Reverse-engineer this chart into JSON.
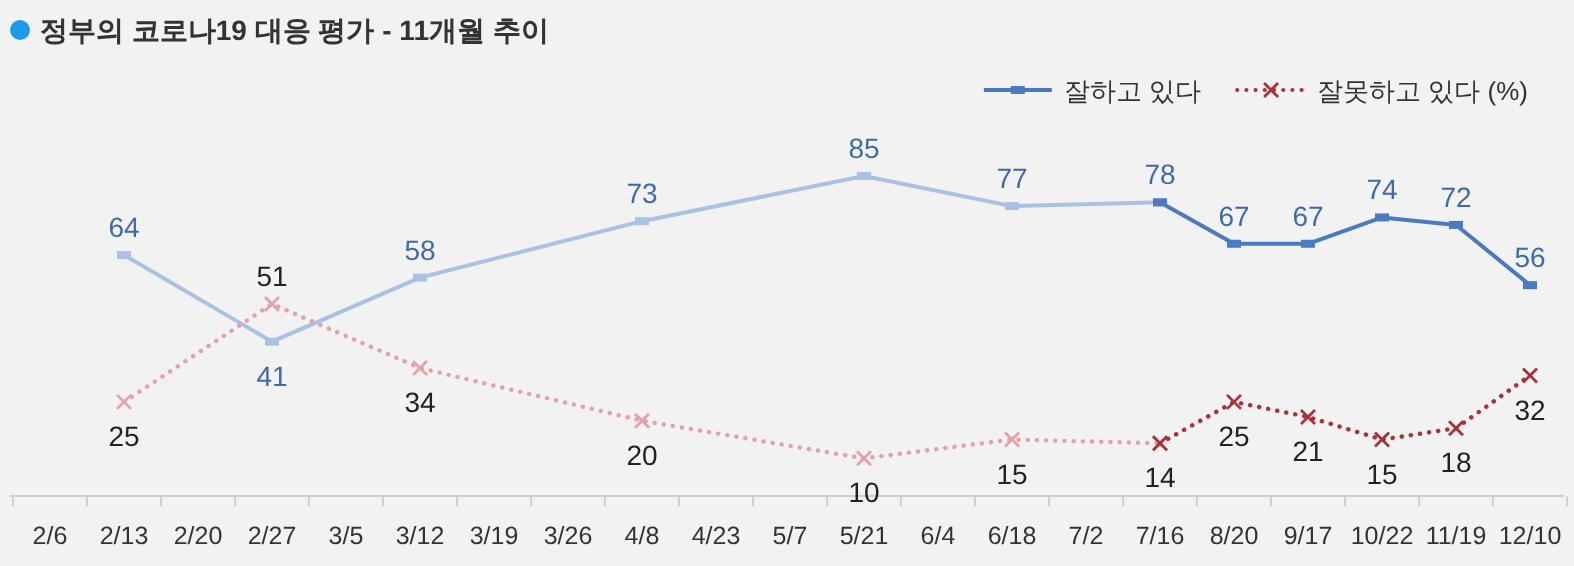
{
  "chart_data": {
    "type": "line",
    "title": "정부의 코로나19 대응 평가 - 11개월 추이",
    "categories": [
      "2/6",
      "2/13",
      "2/20",
      "2/27",
      "3/5",
      "3/12",
      "3/19",
      "3/26",
      "4/8",
      "4/23",
      "5/7",
      "5/21",
      "6/4",
      "6/18",
      "7/2",
      "7/16",
      "8/20",
      "9/17",
      "10/22",
      "11/19",
      "12/10"
    ],
    "series": [
      {
        "color": "#a9c1e3",
        "marker": "square",
        "line_style": "solid",
        "values": [
          null,
          64,
          null,
          41,
          null,
          58,
          null,
          null,
          73,
          null,
          null,
          85,
          null,
          77,
          null,
          78,
          null,
          null,
          null,
          null,
          null
        ],
        "value_labels": [
          null,
          "64",
          null,
          "41",
          null,
          "58",
          null,
          null,
          "73",
          null,
          null,
          "85",
          null,
          "77",
          null,
          null,
          null,
          null,
          null,
          null,
          null
        ]
      },
      {
        "name": "잘하고 있다",
        "color": "#4a7bc0",
        "marker": "square",
        "line_style": "solid",
        "values": [
          null,
          null,
          null,
          null,
          null,
          null,
          null,
          null,
          null,
          null,
          null,
          null,
          null,
          null,
          null,
          78,
          67,
          67,
          74,
          72,
          56
        ],
        "value_labels": [
          null,
          null,
          null,
          null,
          null,
          null,
          null,
          null,
          null,
          null,
          null,
          null,
          null,
          null,
          null,
          "78",
          "67",
          "67",
          "74",
          "72",
          "56"
        ]
      },
      {
        "color": "#e3a3a6",
        "marker": "cross",
        "line_style": "dotted",
        "values": [
          null,
          25,
          null,
          51,
          null,
          34,
          null,
          null,
          20,
          null,
          null,
          10,
          null,
          15,
          null,
          14,
          null,
          null,
          null,
          null,
          null
        ],
        "value_labels": [
          null,
          "25",
          null,
          "51",
          null,
          "34",
          null,
          null,
          "20",
          null,
          null,
          "10",
          null,
          "15",
          null,
          null,
          null,
          null,
          null,
          null,
          null
        ]
      },
      {
        "name": "잘못하고 있다 (%)",
        "color": "#a8323a",
        "marker": "cross",
        "line_style": "dotted",
        "values": [
          null,
          null,
          null,
          null,
          null,
          null,
          null,
          null,
          null,
          null,
          null,
          null,
          null,
          null,
          null,
          14,
          25,
          21,
          15,
          18,
          32
        ],
        "value_labels": [
          null,
          null,
          null,
          null,
          null,
          null,
          null,
          null,
          null,
          null,
          null,
          null,
          null,
          null,
          null,
          "14",
          "25",
          "21",
          "15",
          "18",
          "32"
        ]
      }
    ],
    "legend": "top right",
    "grid": false
  }
}
